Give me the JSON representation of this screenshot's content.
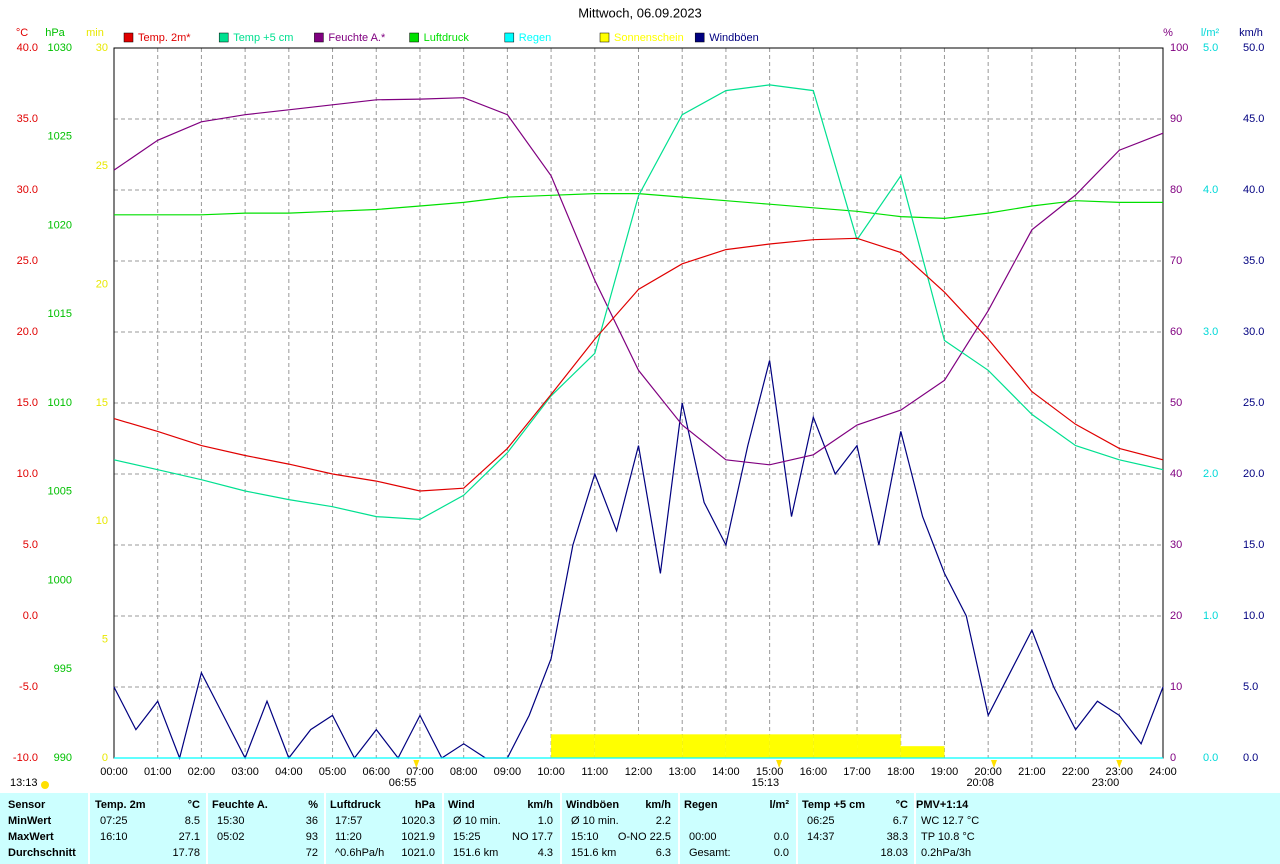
{
  "chart_data": {
    "type": "line",
    "title": "Mittwoch, 06.09.2023",
    "grid": true,
    "xlim": [
      0,
      24
    ],
    "xticks": [
      {
        "value": 0,
        "label": "00:00"
      },
      {
        "value": 1,
        "label": "01:00"
      },
      {
        "value": 2,
        "label": "02:00"
      },
      {
        "value": 3,
        "label": "03:00"
      },
      {
        "value": 4,
        "label": "04:00"
      },
      {
        "value": 5,
        "label": "05:00"
      },
      {
        "value": 6,
        "label": "06:00"
      },
      {
        "value": 7,
        "label": "07:00"
      },
      {
        "value": 8,
        "label": "08:00"
      },
      {
        "value": 9,
        "label": "09:00"
      },
      {
        "value": 10,
        "label": "10:00"
      },
      {
        "value": 11,
        "label": "11:00"
      },
      {
        "value": 12,
        "label": "12:00"
      },
      {
        "value": 13,
        "label": "13:00"
      },
      {
        "value": 14,
        "label": "14:00"
      },
      {
        "value": 15,
        "label": "15:00"
      },
      {
        "value": 16,
        "label": "16:00"
      },
      {
        "value": 17,
        "label": "17:00"
      },
      {
        "value": 18,
        "label": "18:00"
      },
      {
        "value": 19,
        "label": "19:00"
      },
      {
        "value": 20,
        "label": "20:00"
      },
      {
        "value": 21,
        "label": "21:00"
      },
      {
        "value": 22,
        "label": "22:00"
      },
      {
        "value": 23,
        "label": "23:00"
      },
      {
        "value": 24,
        "label": "24:00"
      }
    ],
    "axes": [
      {
        "label": "°C",
        "color": "#e00000",
        "lim": [
          -10,
          40
        ],
        "ticks": [
          {
            "value": -10,
            "label": "-10.0"
          },
          {
            "value": -5,
            "label": "-5.0"
          },
          {
            "value": 0,
            "label": "0.0"
          },
          {
            "value": 5,
            "label": "5.0"
          },
          {
            "value": 10,
            "label": "10.0"
          },
          {
            "value": 15,
            "label": "15.0"
          },
          {
            "value": 20,
            "label": "20.0"
          },
          {
            "value": 25,
            "label": "25.0"
          },
          {
            "value": 30,
            "label": "30.0"
          },
          {
            "value": 35,
            "label": "35.0"
          },
          {
            "value": 40,
            "label": "40.0"
          }
        ]
      },
      {
        "label": "hPa",
        "color": "#00c000",
        "lim": [
          990,
          1030
        ],
        "ticks": [
          990,
          995,
          1000,
          1005,
          1010,
          1015,
          1020,
          1025,
          1030
        ]
      },
      {
        "label": "min",
        "color": "#e8e800",
        "lim": [
          0,
          30
        ],
        "ticks": [
          0,
          5,
          10,
          15,
          20,
          25,
          30
        ]
      },
      {
        "label": "%",
        "color": "#800080",
        "lim": [
          0,
          100
        ],
        "ticks": [
          0,
          10,
          20,
          30,
          40,
          50,
          60,
          70,
          80,
          90,
          100
        ]
      },
      {
        "label": "l/m²",
        "color": "#00d8d8",
        "lim": [
          0,
          5
        ],
        "ticks": [
          {
            "value": 0,
            "label": "0.0"
          },
          {
            "value": 1,
            "label": "1.0"
          },
          {
            "value": 2,
            "label": "2.0"
          },
          {
            "value": 3,
            "label": "3.0"
          },
          {
            "value": 4,
            "label": "4.0"
          },
          {
            "value": 5,
            "label": "5.0"
          }
        ]
      },
      {
        "label": "km/h",
        "color": "#000080",
        "lim": [
          0,
          50
        ],
        "ticks": [
          {
            "value": 0,
            "label": "0.0"
          },
          {
            "value": 5,
            "label": "5.0"
          },
          {
            "value": 10,
            "label": "10.0"
          },
          {
            "value": 15,
            "label": "15.0"
          },
          {
            "value": 20,
            "label": "20.0"
          },
          {
            "value": 25,
            "label": "25.0"
          },
          {
            "value": 30,
            "label": "30.0"
          },
          {
            "value": 35,
            "label": "35.0"
          },
          {
            "value": 40,
            "label": "40.0"
          },
          {
            "value": 45,
            "label": "45.0"
          },
          {
            "value": 50,
            "label": "50.0"
          }
        ]
      }
    ],
    "x": [
      0,
      1,
      2,
      3,
      4,
      5,
      6,
      7,
      8,
      9,
      10,
      11,
      12,
      13,
      14,
      15,
      16,
      17,
      18,
      19,
      20,
      21,
      22,
      23,
      24
    ],
    "series": [
      {
        "name": "Temp. 2m*",
        "color": "#e00000",
        "axis": "°C",
        "values": [
          13.9,
          13.0,
          12.0,
          11.3,
          10.7,
          10.0,
          9.5,
          8.8,
          9.0,
          11.8,
          15.6,
          19.5,
          23.0,
          24.8,
          25.8,
          26.2,
          26.5,
          26.6,
          25.6,
          22.8,
          19.5,
          15.8,
          13.5,
          11.8,
          11.0
        ]
      },
      {
        "name": "Temp +5 cm",
        "color": "#00e090",
        "axis": "°C",
        "values": [
          11.0,
          10.3,
          9.6,
          8.8,
          8.2,
          7.7,
          7.0,
          6.8,
          8.5,
          11.5,
          15.5,
          18.5,
          29.6,
          35.3,
          37.0,
          37.4,
          37.0,
          26.5,
          31.0,
          19.4,
          17.3,
          14.2,
          12.0,
          11.0,
          10.3
        ]
      },
      {
        "name": "Feuchte A.*",
        "color": "#800080",
        "axis": "%",
        "values": [
          82.8,
          87.0,
          89.6,
          90.6,
          91.3,
          92.0,
          92.7,
          92.8,
          93.0,
          90.6,
          82.0,
          67.3,
          54.6,
          46.9,
          42.0,
          41.3,
          42.7,
          46.9,
          49.0,
          53.2,
          63.0,
          74.4,
          79.3,
          85.6,
          88.0
        ]
      },
      {
        "name": "Luftdruck",
        "color": "#00e000",
        "axis": "hPa",
        "values": [
          1020.6,
          1020.6,
          1020.6,
          1020.7,
          1020.7,
          1020.8,
          1020.9,
          1021.1,
          1021.3,
          1021.6,
          1021.7,
          1021.8,
          1021.8,
          1021.6,
          1021.4,
          1021.2,
          1021.0,
          1020.8,
          1020.5,
          1020.4,
          1020.7,
          1021.1,
          1021.4,
          1021.3,
          1021.3
        ]
      },
      {
        "name": "Regen",
        "color": "#00ffff",
        "axis": "l/m²",
        "values": [
          0,
          0,
          0,
          0,
          0,
          0,
          0,
          0,
          0,
          0,
          0,
          0,
          0,
          0,
          0,
          0,
          0,
          0,
          0,
          0,
          0,
          0,
          0,
          0,
          0
        ]
      },
      {
        "name": "Sonnenschein",
        "color": "#ffff00",
        "axis": "min",
        "style": "bar",
        "x": [
          9,
          10,
          11,
          12,
          13,
          14,
          15,
          16,
          17,
          18
        ],
        "values": [
          0,
          1,
          1,
          1,
          1,
          1,
          1,
          1,
          1,
          0.5
        ]
      },
      {
        "name": "Windböen",
        "color": "#000080",
        "axis": "km/h",
        "x": [
          0,
          0.5,
          1,
          1.5,
          2,
          2.5,
          3,
          3.5,
          4,
          4.5,
          5,
          5.5,
          6,
          6.5,
          7,
          7.5,
          8,
          8.5,
          9,
          9.5,
          10,
          10.5,
          11,
          11.5,
          12,
          12.5,
          13,
          13.5,
          14,
          14.5,
          15,
          15.5,
          16,
          16.5,
          17,
          17.5,
          18,
          18.5,
          19,
          19.5,
          20,
          20.5,
          21,
          21.5,
          22,
          22.5,
          23,
          23.5,
          24
        ],
        "values": [
          5,
          2,
          4,
          0,
          6,
          3,
          0,
          4,
          0,
          2,
          3,
          0,
          2,
          0,
          3,
          0,
          1,
          0,
          0,
          3,
          7,
          15,
          20,
          16,
          22,
          13,
          25,
          18,
          15,
          22,
          28,
          17,
          24,
          20,
          22,
          15,
          23,
          17,
          13,
          10,
          3,
          6,
          9,
          5,
          2,
          4,
          3,
          1,
          5
        ]
      }
    ],
    "annotations": [
      {
        "label": "13:13"
      },
      {
        "x": 6.917,
        "label": "06:55"
      },
      {
        "x": 15.217,
        "label": "15:13"
      },
      {
        "x": 20.133,
        "label": "20:08"
      },
      {
        "x": 23.0,
        "label": "23:00"
      }
    ]
  },
  "table": {
    "header": [
      [
        "Sensor",
        null
      ],
      [
        "Temp. 2m",
        "°C"
      ],
      [
        "Feuchte A.",
        "%"
      ],
      [
        "Luftdruck",
        "hPa"
      ],
      [
        "Wind",
        "km/h"
      ],
      [
        "Windböen",
        "km/h"
      ],
      [
        "Regen",
        "l/m²"
      ],
      [
        "Temp +5 cm",
        "°C"
      ],
      [
        "PMV+1:14",
        null
      ]
    ],
    "rows": [
      {
        "label": "MinWert",
        "cells": [
          [
            "07:25",
            "8.5"
          ],
          [
            "15:30",
            "36"
          ],
          [
            "17:57",
            "1020.3"
          ],
          [
            "Ø 10 min.",
            "1.0"
          ],
          [
            "Ø 10 min.",
            "2.2"
          ],
          [
            null,
            null
          ],
          [
            "06:25",
            "6.7"
          ],
          [
            "WC 12.7 °C",
            null
          ]
        ]
      },
      {
        "label": "MaxWert",
        "cells": [
          [
            "16:10",
            "27.1"
          ],
          [
            "05:02",
            "93"
          ],
          [
            "11:20",
            "1021.9"
          ],
          [
            "15:25",
            "NO 17.7"
          ],
          [
            "15:10",
            "O-NO 22.5"
          ],
          [
            "00:00",
            "0.0"
          ],
          [
            "14:37",
            "38.3"
          ],
          [
            "TP 10.8 °C",
            null
          ]
        ]
      },
      {
        "label": "Durchschnitt",
        "cells": [
          [
            null,
            "17.78"
          ],
          [
            null,
            "72"
          ],
          [
            "^0.6hPa/h",
            "1021.0"
          ],
          [
            "151.6 km",
            "4.3"
          ],
          [
            "151.6 km",
            "6.3"
          ],
          [
            "Gesamt:",
            "0.0"
          ],
          [
            null,
            "18.03"
          ],
          [
            "0.2hPa/3h",
            null
          ]
        ]
      }
    ]
  }
}
